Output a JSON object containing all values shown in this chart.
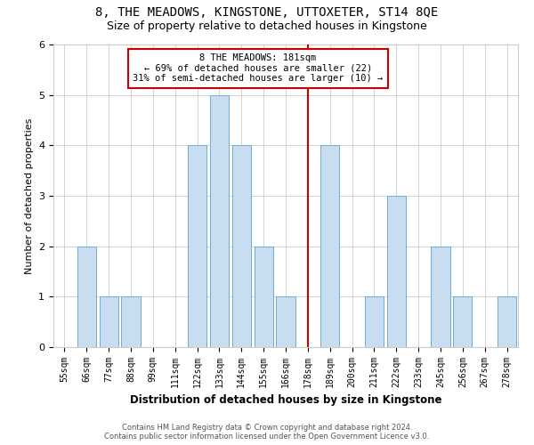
{
  "title": "8, THE MEADOWS, KINGSTONE, UTTOXETER, ST14 8QE",
  "subtitle": "Size of property relative to detached houses in Kingstone",
  "xlabel": "Distribution of detached houses by size in Kingstone",
  "ylabel": "Number of detached properties",
  "categories": [
    "55sqm",
    "66sqm",
    "77sqm",
    "88sqm",
    "99sqm",
    "111sqm",
    "122sqm",
    "133sqm",
    "144sqm",
    "155sqm",
    "166sqm",
    "178sqm",
    "189sqm",
    "200sqm",
    "211sqm",
    "222sqm",
    "233sqm",
    "245sqm",
    "256sqm",
    "267sqm",
    "278sqm"
  ],
  "values": [
    0,
    2,
    1,
    1,
    0,
    0,
    4,
    5,
    4,
    2,
    1,
    0,
    4,
    0,
    1,
    3,
    0,
    2,
    1,
    0,
    1
  ],
  "bar_color": "#c8ddf0",
  "bar_edge_color": "#6aaed6",
  "marker_index": 11,
  "marker_color": "#cc0000",
  "ylim": [
    0,
    6
  ],
  "yticks": [
    0,
    1,
    2,
    3,
    4,
    5,
    6
  ],
  "annotation_title": "8 THE MEADOWS: 181sqm",
  "annotation_line1": "← 69% of detached houses are smaller (22)",
  "annotation_line2": "31% of semi-detached houses are larger (10) →",
  "annotation_box_color": "#cc0000",
  "footnote1": "Contains HM Land Registry data © Crown copyright and database right 2024.",
  "footnote2": "Contains public sector information licensed under the Open Government Licence v3.0.",
  "title_fontsize": 10,
  "subtitle_fontsize": 9,
  "tick_fontsize": 7,
  "ylabel_fontsize": 8,
  "xlabel_fontsize": 8.5,
  "annotation_fontsize": 7.5,
  "footnote_fontsize": 6,
  "grid_color": "#cccccc",
  "bar_width": 0.85
}
